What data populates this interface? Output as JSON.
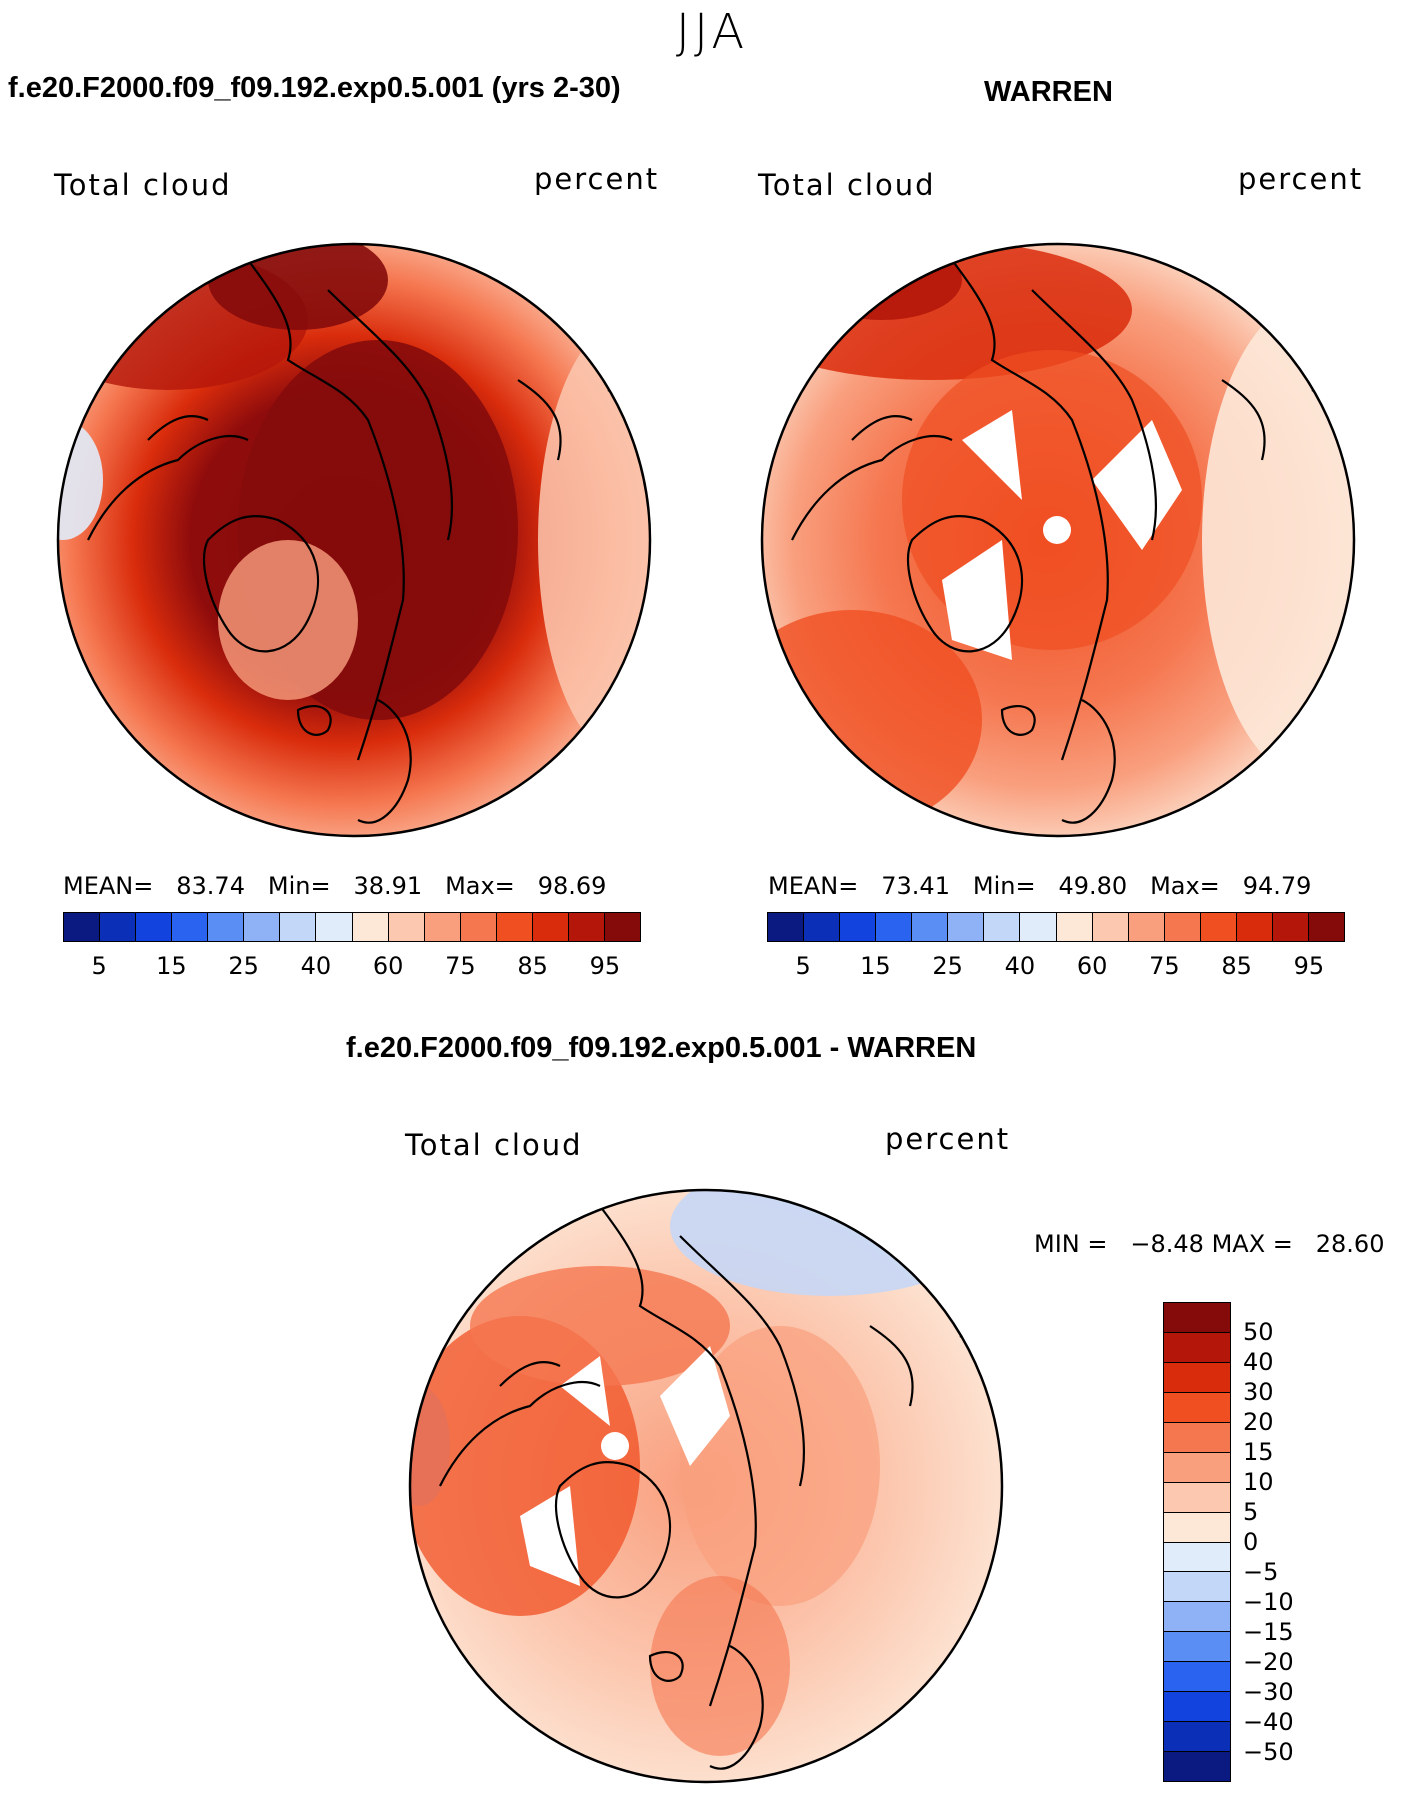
{
  "season": "JJA",
  "panels": [
    {
      "title": "f.e20.F2000.f09_f09.192.exp0.5.001 (yrs 2-30)",
      "variable": "Total cloud",
      "units": "percent",
      "stats": {
        "mean_label": "MEAN=",
        "mean": "83.74",
        "min_label": "Min=",
        "min": "38.91",
        "max_label": "Max=",
        "max": "98.69"
      },
      "map": {
        "base_color": "#e8461e",
        "pole_color": "#8b0000"
      }
    },
    {
      "title": "WARREN",
      "variable": "Total cloud",
      "units": "percent",
      "stats": {
        "mean_label": "MEAN=",
        "mean": "73.41",
        "min_label": "Min=",
        "min": "49.80",
        "max_label": "Max=",
        "max": "94.79"
      },
      "map": {
        "base_color": "#f79a78",
        "pole_color": "#e8461e"
      }
    }
  ],
  "abs_colorbar": {
    "colors": [
      "#0a1a80",
      "#0c2fb8",
      "#1343de",
      "#2a63f0",
      "#5a8ef5",
      "#8fb2f7",
      "#c3d7f9",
      "#e1ecfb",
      "#fde8d8",
      "#fcc8b0",
      "#f99f7e",
      "#f57750",
      "#f04f22",
      "#d92c0c",
      "#b4170a",
      "#850b0b"
    ],
    "labels": [
      "5",
      "15",
      "25",
      "40",
      "60",
      "75",
      "85",
      "95"
    ]
  },
  "diff_panel": {
    "title": "f.e20.F2000.f09_f09.192.exp0.5.001 - WARREN",
    "variable": "Total cloud",
    "units": "percent",
    "stats": {
      "min_label": "MIN =",
      "min": "−8.48",
      "max_label": "MAX =",
      "max": "28.60"
    },
    "map": {
      "base_color": "#fcc2a8",
      "pole_color": "#f57750"
    }
  },
  "diff_colorbar": {
    "colors": [
      "#850b0b",
      "#b4170a",
      "#d92c0c",
      "#f04f22",
      "#f57750",
      "#f99f7e",
      "#fcc8b0",
      "#fde8d8",
      "#e1ecfb",
      "#c3d7f9",
      "#8fb2f7",
      "#5a8ef5",
      "#2a63f0",
      "#1343de",
      "#0c2fb8",
      "#0a1a80"
    ],
    "labels": [
      "50",
      "40",
      "30",
      "20",
      "15",
      "10",
      "5",
      "0",
      "−5",
      "−10",
      "−15",
      "−20",
      "−30",
      "−40",
      "−50"
    ]
  }
}
